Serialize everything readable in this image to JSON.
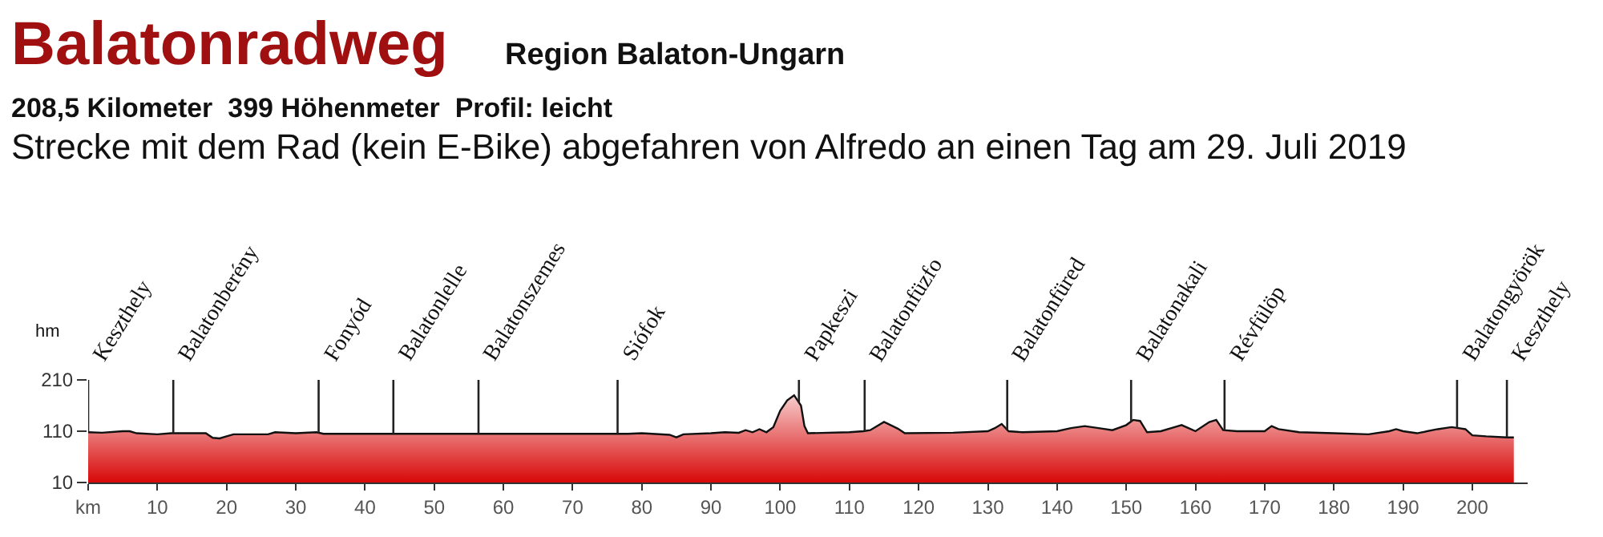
{
  "chart_data": {
    "type": "area",
    "title": "Balatonradweg",
    "subtitle": "Region Balaton-Ungarn",
    "annotations": [
      "208,5 Kilometer  399 Höhenmeter  Profil: leicht",
      "Strecke mit dem Rad (kein E-Bike) abgefahren von Alfredo an einen Tag am 29. Juli 2019"
    ],
    "ylabel": "hm",
    "x": [
      0,
      2,
      5,
      6,
      7,
      10,
      12,
      15,
      17,
      18,
      19,
      20,
      21,
      26,
      27,
      30,
      33,
      34,
      40,
      50,
      60,
      70,
      78,
      80,
      84,
      85,
      86,
      90,
      92,
      94,
      95,
      96,
      97,
      98,
      99,
      100,
      101,
      102,
      103,
      103.5,
      104,
      110,
      112,
      113,
      115,
      117,
      118,
      125,
      130,
      131,
      132,
      133,
      135,
      140,
      142,
      144,
      146,
      148,
      150,
      151,
      152,
      153,
      155,
      157,
      158,
      159,
      160,
      162,
      163,
      164,
      166,
      170,
      171,
      172,
      175,
      180,
      185,
      188,
      189,
      190,
      192,
      195,
      197,
      198,
      199,
      200,
      202,
      205,
      206
    ],
    "series": [
      {
        "color": "#d80808",
        "values": [
          108,
          107,
          110,
          110,
          106,
          104,
          106,
          106,
          106,
          97,
          96,
          100,
          104,
          104,
          108,
          106,
          108,
          105,
          105,
          105,
          105,
          105,
          105,
          106,
          103,
          98,
          104,
          106,
          108,
          107,
          112,
          108,
          114,
          108,
          118,
          150,
          170,
          180,
          160,
          120,
          106,
          108,
          110,
          112,
          128,
          115,
          106,
          107,
          110,
          116,
          124,
          110,
          108,
          110,
          116,
          120,
          116,
          112,
          122,
          132,
          130,
          108,
          110,
          118,
          122,
          116,
          110,
          128,
          132,
          112,
          110,
          110,
          120,
          114,
          108,
          106,
          104,
          110,
          114,
          110,
          106,
          114,
          118,
          116,
          114,
          102,
          100,
          98,
          98
        ]
      }
    ],
    "xlim": [
      0,
      208
    ],
    "ylim": [
      10,
      210
    ],
    "xticks": [
      {
        "value": 0,
        "label": "km"
      },
      10,
      20,
      30,
      40,
      50,
      60,
      70,
      80,
      90,
      100,
      110,
      120,
      130,
      140,
      150,
      160,
      170,
      180,
      190,
      200
    ],
    "yticks": [
      10,
      110,
      210
    ],
    "ref_lines": [
      {
        "axis": "x",
        "value": 0,
        "label": "Keszthely"
      },
      {
        "axis": "x",
        "value": 12.3,
        "label": "Balatonberény"
      },
      {
        "axis": "x",
        "value": 33.3,
        "label": "Fonyód"
      },
      {
        "axis": "x",
        "value": 44.1,
        "label": "Balatonlelle"
      },
      {
        "axis": "x",
        "value": 56.4,
        "label": "Balatonszemes"
      },
      {
        "axis": "x",
        "value": 76.5,
        "label": "Siófok"
      },
      {
        "axis": "x",
        "value": 102.7,
        "label": "Papkeszi"
      },
      {
        "axis": "x",
        "value": 112.2,
        "label": "Balatonfüzfo"
      },
      {
        "axis": "x",
        "value": 132.8,
        "label": "Balatonfüred"
      },
      {
        "axis": "x",
        "value": 150.7,
        "label": "Balatonakali"
      },
      {
        "axis": "x",
        "value": 164.2,
        "label": "Révfülöp"
      },
      {
        "axis": "x",
        "value": 197.8,
        "label": "Balatongyörök"
      },
      {
        "axis": "x",
        "value": 205.0,
        "label": "Keszthely"
      }
    ]
  }
}
